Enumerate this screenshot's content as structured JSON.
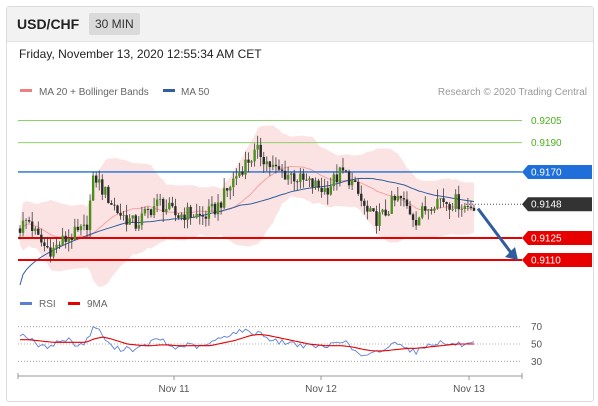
{
  "header": {
    "symbol": "USD/CHF",
    "timeframe": "30 MIN",
    "datetime": "Friday, November 13, 2020 12:55:34 AM CET"
  },
  "legend": {
    "ma20_label": "MA 20 + Bollinger Bands",
    "ma20_color": "#f08080",
    "ma50_label": "MA 50",
    "ma50_color": "#2f5f9e",
    "copyright": "Research © 2020 Trading Central"
  },
  "chart_data": [
    {
      "type": "candlestick",
      "title": "USD/CHF 30 MIN",
      "ylim": [
        0.9093,
        0.9219
      ],
      "x_ticks": [
        "Nov 11",
        "Nov 12",
        "Nov 13"
      ],
      "levels": [
        {
          "value": 0.9205,
          "label": "0.9205",
          "role": "resistance",
          "color": "#4caf1a"
        },
        {
          "value": 0.919,
          "label": "0.9190",
          "role": "resistance",
          "color": "#4caf1a"
        },
        {
          "value": 0.917,
          "label": "0.9170",
          "role": "pivot",
          "color": "#1e6fd9"
        },
        {
          "value": 0.9148,
          "label": "0.9148",
          "role": "last price",
          "color": "#333333"
        },
        {
          "value": 0.9125,
          "label": "0.9125",
          "role": "support",
          "color": "#e60000"
        },
        {
          "value": 0.911,
          "label": "0.9110",
          "role": "support",
          "color": "#e60000"
        }
      ],
      "ohlc_path": [
        0.9132,
        0.9138,
        0.9126,
        0.9119,
        0.9117,
        0.9122,
        0.9126,
        0.9128,
        0.9131,
        0.9168,
        0.9158,
        0.915,
        0.9142,
        0.9138,
        0.9134,
        0.914,
        0.9146,
        0.9149,
        0.9144,
        0.914,
        0.9142,
        0.9141,
        0.9139,
        0.9142,
        0.9147,
        0.9156,
        0.9166,
        0.9174,
        0.918,
        0.9184,
        0.9176,
        0.9171,
        0.9169,
        0.9168,
        0.9164,
        0.9162,
        0.916,
        0.9158,
        0.9164,
        0.917,
        0.9165,
        0.9154,
        0.9142,
        0.9138,
        0.914,
        0.9148,
        0.9152,
        0.9145,
        0.9138,
        0.9144,
        0.915,
        0.9152,
        0.9149,
        0.915,
        0.9146,
        0.9148
      ],
      "arrow": {
        "from": 0.9145,
        "to": 0.911,
        "direction": "down"
      }
    },
    {
      "type": "line",
      "title": "RSI",
      "ylim": [
        20,
        80
      ],
      "y_ticks": [
        70,
        50,
        30
      ],
      "series": [
        {
          "name": "RSI",
          "color": "#5b7fd6",
          "values": [
            62,
            58,
            49,
            46,
            50,
            54,
            55,
            48,
            52,
            72,
            60,
            47,
            44,
            46,
            43,
            47,
            53,
            56,
            48,
            45,
            49,
            48,
            46,
            51,
            55,
            60,
            63,
            66,
            62,
            64,
            57,
            53,
            52,
            51,
            49,
            47,
            48,
            45,
            52,
            55,
            47,
            38,
            35,
            40,
            43,
            49,
            53,
            44,
            41,
            47,
            51,
            52,
            49,
            50,
            48,
            50
          ]
        },
        {
          "name": "9MA",
          "color": "#e60000",
          "values": [
            55,
            55,
            54,
            53,
            52,
            52,
            52,
            52,
            52,
            56,
            58,
            56,
            53,
            50,
            49,
            48,
            48,
            49,
            49,
            48,
            48,
            48,
            48,
            48,
            50,
            52,
            54,
            57,
            60,
            61,
            60,
            58,
            56,
            54,
            52,
            50,
            49,
            48,
            48,
            48,
            47,
            45,
            43,
            42,
            42,
            43,
            44,
            45,
            45,
            46,
            47,
            48,
            49,
            50,
            50,
            50
          ]
        }
      ]
    }
  ]
}
